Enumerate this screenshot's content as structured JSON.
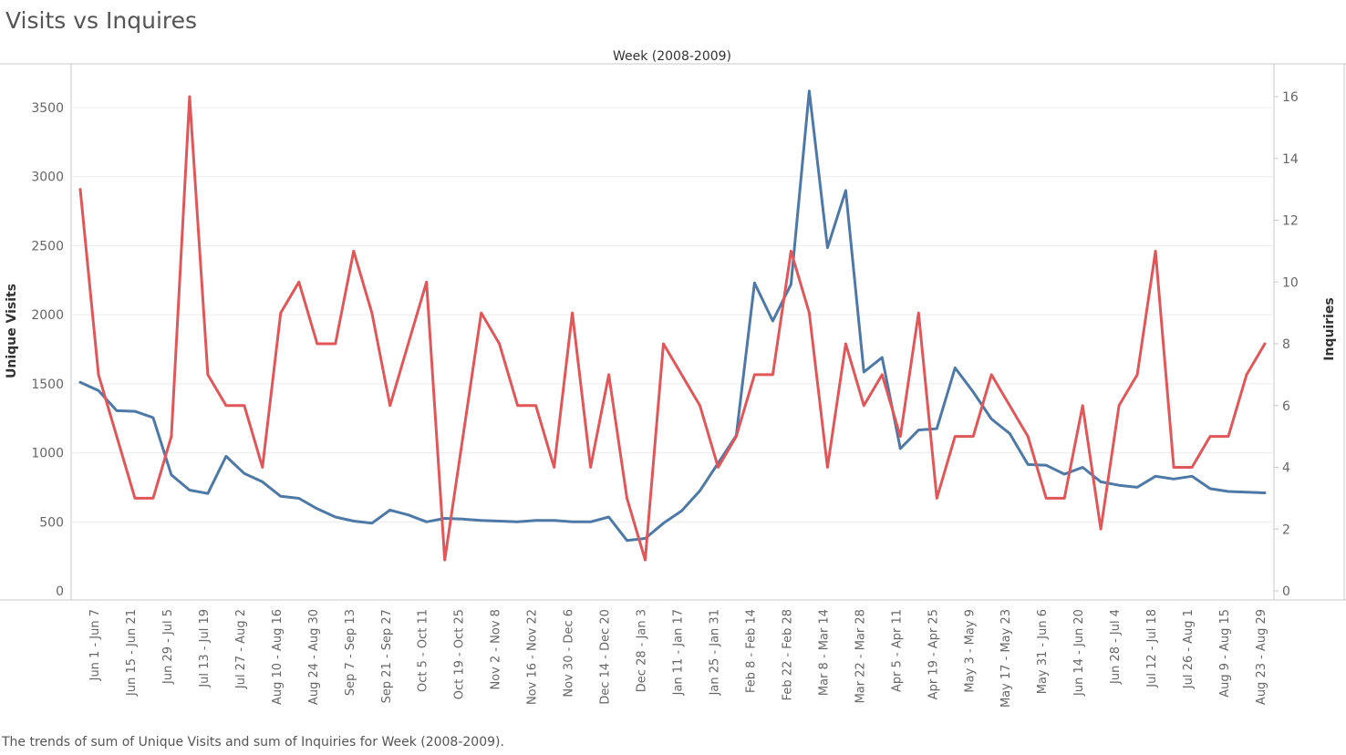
{
  "page": {
    "title": "Visits vs Inquires",
    "footer": "The trends of sum of Unique Visits and sum of Inquiries for Week (2008-2009)."
  },
  "chart_data": {
    "type": "line",
    "title": "Visits vs Inquires",
    "header": "Week (2008-2009)",
    "ylabel_left": "Unique Visits",
    "ylabel_right": "Inquiries",
    "ylim_left": [
      0,
      3650
    ],
    "ylim_right": [
      0,
      16.9
    ],
    "y_ticks_left": [
      0,
      500,
      1000,
      1500,
      2000,
      2500,
      3000,
      3500
    ],
    "y_ticks_right": [
      0,
      2,
      4,
      6,
      8,
      10,
      12,
      14,
      16
    ],
    "x_tick_labels": [
      "Jun 1 - Jun 7",
      "Jun 15 - Jun 21",
      "Jun 29 - Jul 5",
      "Jul 13 - Jul 19",
      "Jul 27 - Aug 2",
      "Aug 10 - Aug 16",
      "Aug 24 - Aug 30",
      "Sep 7 - Sep 13",
      "Sep 21 - Sep 27",
      "Oct 5 - Oct 11",
      "Oct 19 - Oct 25",
      "Nov 2 - Nov 8",
      "Nov 16 - Nov 22",
      "Nov 30 - Dec 6",
      "Dec 14 - Dec 20",
      "Dec 28 - Jan 3",
      "Jan 11 - Jan 17",
      "Jan 25 - Jan 31",
      "Feb 8 - Feb 14",
      "Feb 22 - Feb 28",
      "Mar 8 - Mar 14",
      "Mar 22 - Mar 28",
      "Apr 5 - Apr 11",
      "Apr 19 - Apr 25",
      "May 3 - May 9",
      "May 17 - May 23",
      "May 31 - Jun 6",
      "Jun 14 - Jun 20",
      "Jun 28 - Jul 4",
      "Jul 12 - Jul 18",
      "Jul 26 - Aug 1",
      "Aug 9 - Aug 15",
      "Aug 23 - Aug 29"
    ],
    "grid": true,
    "series": [
      {
        "name": "Unique Visits",
        "axis": "left",
        "color": "#4e79a7",
        "values": [
          1510,
          1450,
          1305,
          1300,
          1255,
          840,
          730,
          705,
          975,
          850,
          790,
          685,
          670,
          595,
          535,
          505,
          490,
          585,
          550,
          500,
          525,
          520,
          510,
          505,
          500,
          510,
          510,
          500,
          500,
          535,
          365,
          380,
          490,
          580,
          725,
          925,
          1125,
          2230,
          1955,
          2220,
          3620,
          2485,
          2900,
          1585,
          1690,
          1030,
          1165,
          1175,
          1615,
          1440,
          1245,
          1140,
          915,
          910,
          845,
          895,
          790,
          765,
          750,
          830,
          810,
          830,
          740,
          720,
          715,
          710
        ]
      },
      {
        "name": "Inquiries",
        "axis": "right",
        "color": "#e15759",
        "values": [
          13,
          7,
          5,
          3,
          3,
          5,
          16,
          7,
          6,
          6,
          4,
          9,
          10,
          8,
          8,
          11,
          9,
          6,
          8,
          10,
          1,
          5,
          9,
          8,
          6,
          6,
          4,
          9,
          4,
          7,
          3,
          1,
          8,
          7,
          6,
          4,
          5,
          7,
          7,
          11,
          9,
          4,
          8,
          6,
          7,
          5,
          9,
          3,
          5,
          5,
          7,
          6,
          5,
          3,
          3,
          6,
          2,
          6,
          7,
          11,
          4,
          4,
          5,
          5,
          7,
          8
        ]
      }
    ]
  }
}
